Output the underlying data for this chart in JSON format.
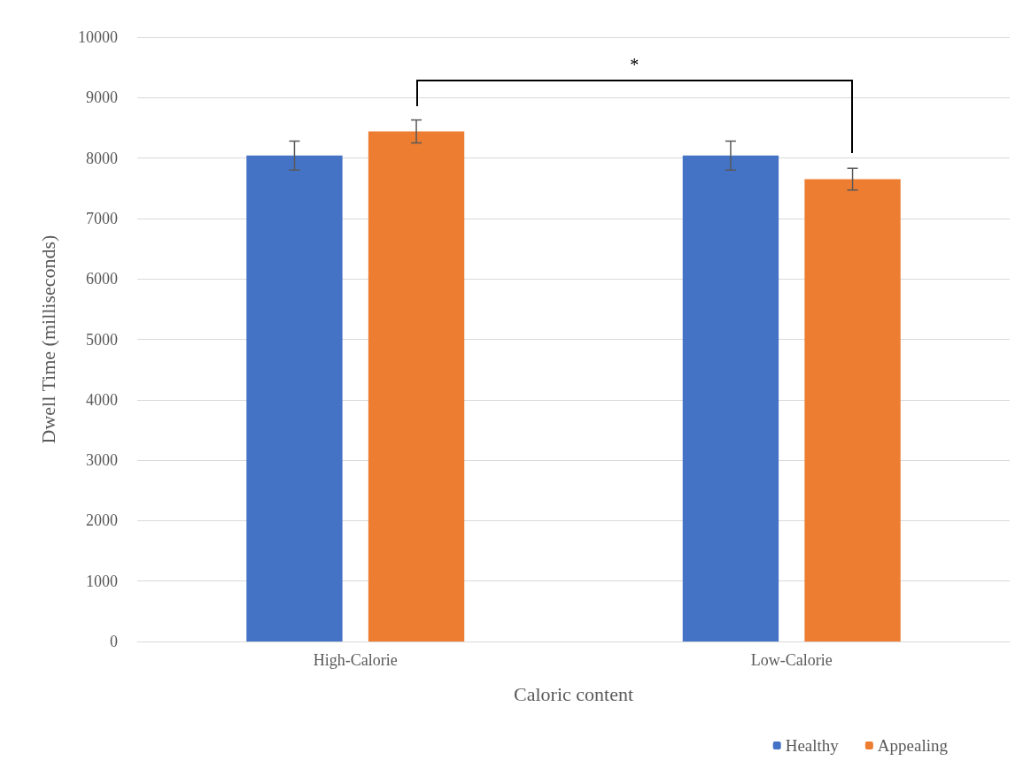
{
  "chart_data": {
    "type": "bar",
    "xlabel": "Caloric content",
    "ylabel": "Dwell Time (milliseconds)",
    "categories": [
      "High-Calorie",
      "Low-Calorie"
    ],
    "series": [
      {
        "name": "Healthy",
        "color": "#4472c4",
        "values": [
          8040,
          8040
        ],
        "errors": [
          240,
          240
        ]
      },
      {
        "name": "Appealing",
        "color": "#ed7d31",
        "values": [
          8440,
          7650
        ],
        "errors": [
          190,
          180
        ]
      }
    ],
    "ylim": [
      0,
      10000
    ],
    "yticks": [
      0,
      1000,
      2000,
      3000,
      4000,
      5000,
      6000,
      7000,
      8000,
      9000,
      10000
    ],
    "grid": "y",
    "legend": "bottom right",
    "annotations": [
      "*"
    ]
  }
}
